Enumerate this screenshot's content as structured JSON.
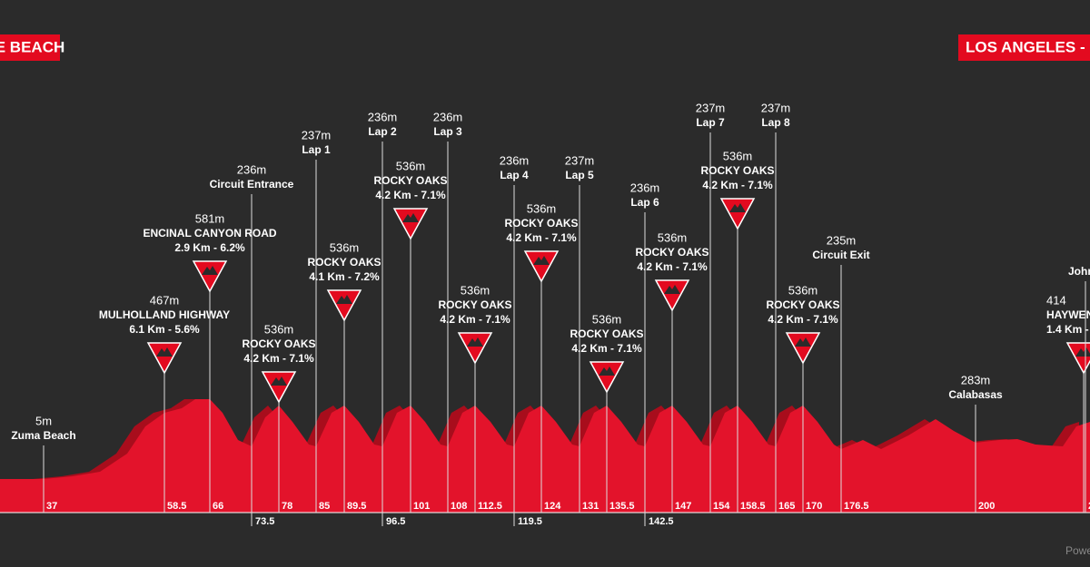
{
  "header": {
    "start": "E BEACH",
    "finish": "LOS ANGELES - G"
  },
  "markers": [
    {
      "altitude": "5m",
      "name": "Zuma Beach",
      "km": "37"
    },
    {
      "altitude": "467m",
      "name": "MULHOLLAND HIGHWAY",
      "detail": "6.1 Km - 5.6%",
      "km": "58.5"
    },
    {
      "altitude": "581m",
      "name": "ENCINAL CANYON ROAD",
      "detail": "2.9 Km - 6.2%",
      "km": "66"
    },
    {
      "altitude": "236m",
      "name": "Circuit Entrance",
      "km": "73.5"
    },
    {
      "altitude": "536m",
      "name": "ROCKY OAKS",
      "detail": "4.2 Km - 7.1%",
      "km": "78"
    },
    {
      "altitude": "237m",
      "name": "Lap 1",
      "km": "85"
    },
    {
      "altitude": "536m",
      "name": "ROCKY OAKS",
      "detail": "4.1 Km - 7.2%",
      "km": "89.5"
    },
    {
      "altitude": "236m",
      "name": "Lap 2",
      "km": "96.5"
    },
    {
      "altitude": "536m",
      "name": "ROCKY OAKS",
      "detail": "4.2 Km - 7.1%",
      "km": "101"
    },
    {
      "altitude": "236m",
      "name": "Lap 3",
      "km": "108"
    },
    {
      "altitude": "536m",
      "name": "ROCKY OAKS",
      "detail": "4.2 Km - 7.1%",
      "km": "112.5"
    },
    {
      "altitude": "236m",
      "name": "Lap 4",
      "km": "119.5"
    },
    {
      "altitude": "536m",
      "name": "ROCKY OAKS",
      "detail": "4.2 Km - 7.1%",
      "km": "124"
    },
    {
      "altitude": "237m",
      "name": "Lap 5",
      "km": "131"
    },
    {
      "altitude": "536m",
      "name": "ROCKY OAKS",
      "detail": "4.2 Km - 7.1%",
      "km": "135.5"
    },
    {
      "altitude": "236m",
      "name": "Lap 6",
      "km": "142.5"
    },
    {
      "altitude": "536m",
      "name": "ROCKY OAKS",
      "detail": "4.2 Km - 7.1%",
      "km": "147"
    },
    {
      "altitude": "237m",
      "name": "Lap 7",
      "km": "154"
    },
    {
      "altitude": "536m",
      "name": "ROCKY OAKS",
      "detail": "4.2 Km - 7.1%",
      "km": "158.5"
    },
    {
      "altitude": "237m",
      "name": "Lap 8",
      "km": "165"
    },
    {
      "altitude": "536m",
      "name": "ROCKY OAKS",
      "detail": "4.2 Km - 7.1%",
      "km": "170"
    },
    {
      "altitude": "235m",
      "name": "Circuit Exit",
      "km": "176.5"
    },
    {
      "altitude": "283m",
      "name": "Calabasas",
      "km": "200"
    },
    {
      "altitude": "414",
      "name": "HAYWENHUR",
      "detail": "1.4 Km -"
    },
    {
      "name": "John",
      "km": "2"
    }
  ],
  "footer": "Powe"
}
